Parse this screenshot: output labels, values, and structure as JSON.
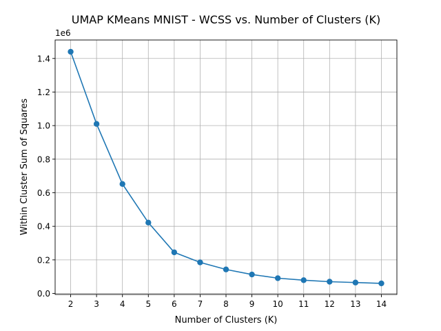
{
  "chart_data": {
    "type": "line",
    "title": "UMAP KMeans MNIST - WCSS vs. Number of Clusters (K)",
    "xlabel": "Number of Clusters (K)",
    "ylabel": "Within Cluster Sum of Squares",
    "y_offset_label": "1e6",
    "x": [
      2,
      3,
      4,
      5,
      6,
      7,
      8,
      9,
      10,
      11,
      12,
      13,
      14
    ],
    "y": [
      1440000,
      1010000,
      652000,
      422000,
      245000,
      185000,
      143000,
      113000,
      91000,
      79000,
      70000,
      65000,
      60000
    ],
    "xlim": [
      1.4,
      14.6
    ],
    "ylim": [
      -6000,
      1510000
    ],
    "x_ticks": [
      2,
      3,
      4,
      5,
      6,
      7,
      8,
      9,
      10,
      11,
      12,
      13,
      14
    ],
    "y_ticks": [
      0,
      200000,
      400000,
      600000,
      800000,
      1000000,
      1200000,
      1400000
    ],
    "y_tick_labels": [
      "0.0",
      "0.2",
      "0.4",
      "0.6",
      "0.8",
      "1.0",
      "1.2",
      "1.4"
    ],
    "grid": true,
    "line_color": "#1f77b4",
    "marker": "circle"
  }
}
